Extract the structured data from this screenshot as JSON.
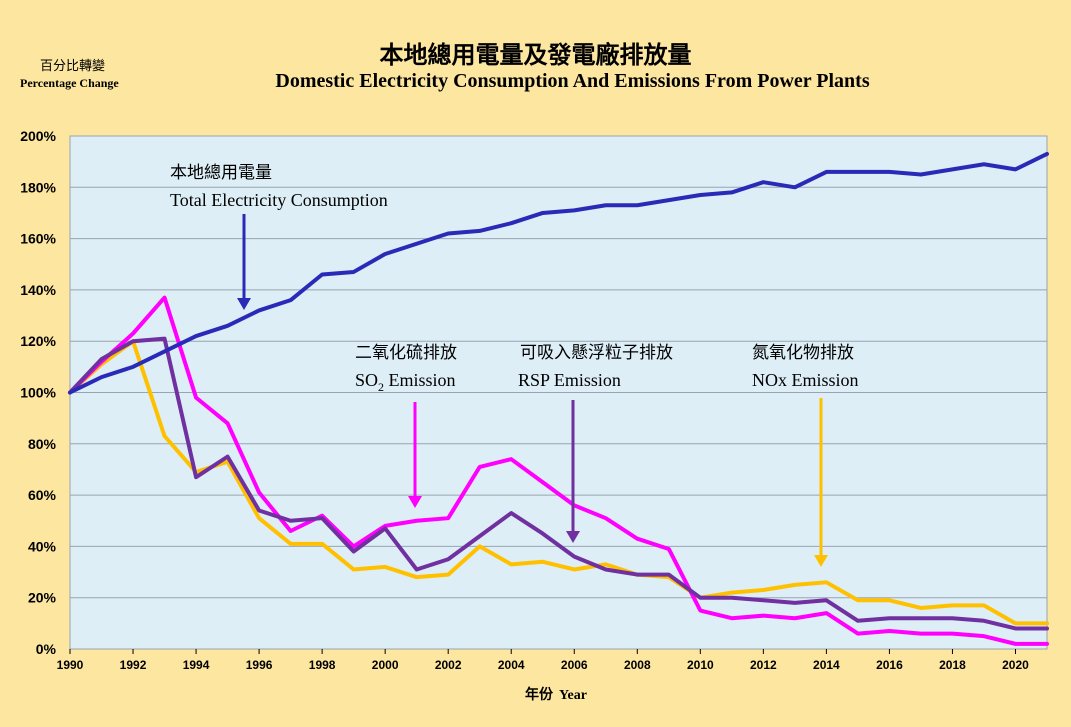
{
  "chart_data": {
    "type": "line",
    "title_zh": "本地總用電量及發電廠排放量",
    "title_en": "Domestic Electricity Consumption And Emissions From Power Plants",
    "ylabel_zh": "百分比轉變",
    "ylabel_en": "Percentage  Change",
    "xlabel_zh": "年份",
    "xlabel_en": "Year",
    "x": [
      1990,
      1991,
      1992,
      1993,
      1994,
      1995,
      1996,
      1997,
      1998,
      1999,
      2000,
      2001,
      2002,
      2003,
      2004,
      2005,
      2006,
      2007,
      2008,
      2009,
      2010,
      2011,
      2012,
      2013,
      2014,
      2015,
      2016,
      2017,
      2018,
      2019,
      2020,
      2021
    ],
    "xlim": [
      1990,
      2021
    ],
    "ylim": [
      0,
      200
    ],
    "yticks": [
      "0%",
      "20%",
      "40%",
      "60%",
      "80%",
      "100%",
      "120%",
      "140%",
      "160%",
      "180%",
      "200%"
    ],
    "xticks": [
      "1990",
      "1992",
      "1994",
      "1996",
      "1998",
      "2000",
      "2002",
      "2004",
      "2006",
      "2008",
      "2010",
      "2012",
      "2014",
      "2016",
      "2018",
      "2020"
    ],
    "series": [
      {
        "name": "Total Electricity Consumption",
        "color": "#2A2AB8",
        "values": [
          100,
          106,
          110,
          116,
          122,
          126,
          132,
          136,
          146,
          147,
          154,
          158,
          162,
          163,
          166,
          170,
          171,
          173,
          173,
          175,
          177,
          178,
          182,
          180,
          186,
          186,
          186,
          185,
          187,
          189,
          187,
          193
        ]
      },
      {
        "name": "SO2 Emission",
        "color": "#FF00FF",
        "values": [
          100,
          112,
          123,
          137,
          98,
          88,
          61,
          46,
          52,
          40,
          48,
          50,
          51,
          71,
          74,
          65,
          56,
          51,
          43,
          39,
          15,
          12,
          13,
          12,
          14,
          6,
          7,
          6,
          6,
          5,
          2,
          2
        ]
      },
      {
        "name": "RSP Emission",
        "color": "#7030A0",
        "values": [
          100,
          113,
          120,
          121,
          67,
          75,
          54,
          50,
          51,
          38,
          47,
          31,
          35,
          44,
          53,
          45,
          36,
          31,
          29,
          29,
          20,
          20,
          19,
          18,
          19,
          11,
          12,
          12,
          12,
          11,
          8,
          8
        ]
      },
      {
        "name": "NOx Emission",
        "color": "#FFC000",
        "values": [
          100,
          111,
          120,
          83,
          69,
          73,
          51,
          41,
          41,
          31,
          32,
          28,
          29,
          40,
          33,
          34,
          31,
          33,
          29,
          28,
          20,
          22,
          23,
          25,
          26,
          19,
          19,
          16,
          17,
          17,
          10,
          10
        ]
      }
    ],
    "annotations": [
      {
        "zh": "本地總用電量",
        "en": "Total  Electricity  Consumption",
        "color": "#2A2AB8"
      },
      {
        "zh": "二氧化硫排放",
        "en_main": "SO",
        "en_sub": "2",
        "en_rest": " Emission",
        "color": "#FF00FF"
      },
      {
        "zh": "可吸入懸浮粒子排放",
        "en": "RSP Emission",
        "color": "#7030A0"
      },
      {
        "zh": "氮氧化物排放",
        "en": "NOx Emission",
        "color": "#FFC000"
      }
    ]
  }
}
